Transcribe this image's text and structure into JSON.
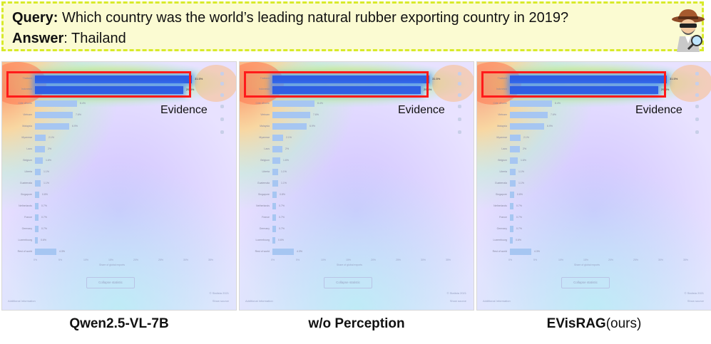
{
  "query": {
    "label": "Query:",
    "text": "Which country was the world’s leading natural rubber exporting country in 2019?",
    "answer_label": "Answer",
    "answer_sep": ":",
    "answer_text": "Thailand"
  },
  "evidence_label": "Evidence",
  "captions": [
    {
      "bold": "Qwen2.5-VL-7B",
      "normal": ""
    },
    {
      "bold": "w/o Perception",
      "normal": ""
    },
    {
      "bold": "EVisRAG",
      "normal": "(ours)"
    }
  ],
  "panel_heat": [
    {
      "corner_warm": 0.9,
      "evidence": 1.0
    },
    {
      "corner_warm": 0.9,
      "evidence": 1.0
    },
    {
      "corner_warm": 0.75,
      "evidence": 1.0
    }
  ],
  "chart_rows": [
    {
      "label": "Thailand",
      "value": 31.5,
      "value_text": "31.5%"
    },
    {
      "label": "Indonesia",
      "value": 29.8,
      "value_text": "29.8%"
    },
    {
      "label": "Côte d'Ivoire",
      "value": 8.4,
      "value_text": "8.4%"
    },
    {
      "label": "Vietnam",
      "value": 7.6,
      "value_text": "7.6%"
    },
    {
      "label": "Malaysia",
      "value": 6.9,
      "value_text": "6.9%"
    },
    {
      "label": "Myanmar",
      "value": 2.1,
      "value_text": "2.1%"
    },
    {
      "label": "Laos",
      "value": 2.0,
      "value_text": "2%"
    },
    {
      "label": "Belgium",
      "value": 1.6,
      "value_text": "1.6%"
    },
    {
      "label": "Liberia",
      "value": 1.1,
      "value_text": "1.1%"
    },
    {
      "label": "Guatemala",
      "value": 1.1,
      "value_text": "1.1%"
    },
    {
      "label": "Singapore",
      "value": 0.8,
      "value_text": "0.8%"
    },
    {
      "label": "Netherlands",
      "value": 0.7,
      "value_text": "0.7%"
    },
    {
      "label": "France",
      "value": 0.7,
      "value_text": "0.7%"
    },
    {
      "label": "Germany",
      "value": 0.7,
      "value_text": "0.7%"
    },
    {
      "label": "Luxembourg",
      "value": 0.6,
      "value_text": "0.6%"
    },
    {
      "label": "Rest of world",
      "value": 4.3,
      "value_text": "4.3%"
    }
  ],
  "axis_ticks": [
    "0%",
    "5%",
    "10%",
    "15%",
    "20%",
    "25%",
    "30%",
    "35%"
  ],
  "axis_title": "Share of global exports",
  "collapse_label": "Collapse statistic",
  "footer_left": "Additional Information",
  "footer_right_1": "© Statista 2021",
  "footer_right_2": "Show source",
  "colors": {
    "evidence_box": "#ff1a1a",
    "query_bg": "#fbfbd2",
    "query_border": "#d8ea2a"
  }
}
